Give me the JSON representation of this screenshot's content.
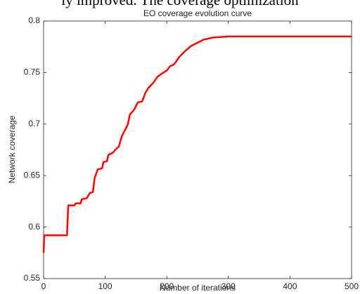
{
  "page_text": "ly improved. The coverage optimization",
  "chart_data": {
    "type": "line",
    "title": "EO coverage evolution curve",
    "x_label": "Number of iterations",
    "y_label": "Network coverage",
    "x": [
      0,
      1,
      38,
      40,
      50,
      52,
      60,
      62,
      70,
      75,
      80,
      83,
      88,
      95,
      97,
      103,
      105,
      112,
      118,
      122,
      127,
      132,
      137,
      140,
      147,
      153,
      160,
      165,
      170,
      178,
      185,
      192,
      200,
      205,
      212,
      220,
      230,
      240,
      250,
      260,
      275,
      300,
      350,
      500
    ],
    "series": [
      {
        "name": "EO",
        "color": "#ff0000",
        "values": [
          0.575,
          0.592,
          0.592,
          0.621,
          0.621,
          0.623,
          0.623,
          0.627,
          0.628,
          0.633,
          0.634,
          0.648,
          0.656,
          0.657,
          0.663,
          0.664,
          0.67,
          0.672,
          0.676,
          0.678,
          0.688,
          0.694,
          0.7,
          0.709,
          0.714,
          0.721,
          0.722,
          0.73,
          0.735,
          0.74,
          0.746,
          0.749,
          0.752,
          0.756,
          0.758,
          0.765,
          0.771,
          0.776,
          0.779,
          0.782,
          0.784,
          0.785,
          0.785,
          0.785
        ]
      }
    ],
    "xlim": [
      0,
      500
    ],
    "xticks": [
      0,
      100,
      200,
      300,
      400,
      500
    ],
    "ylim": [
      0.55,
      0.8
    ],
    "yticks": [
      0.55,
      0.6,
      0.65,
      0.7,
      0.75,
      0.8
    ]
  }
}
